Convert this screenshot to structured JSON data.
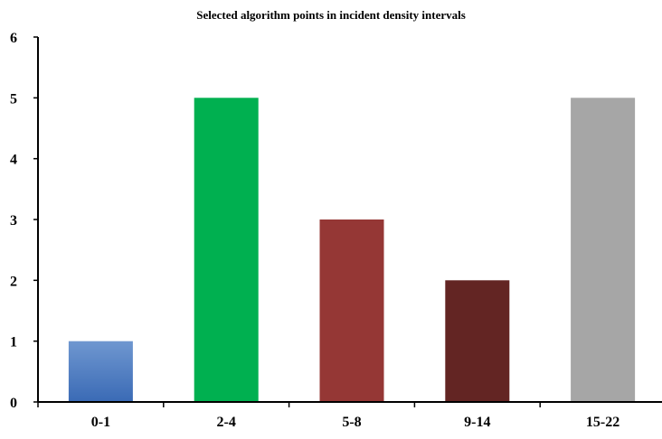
{
  "chart_data": {
    "type": "bar",
    "title": "Selected algorithm points in incident density intervals",
    "xlabel": "",
    "ylabel": "",
    "categories": [
      "0-1",
      "2-4",
      "5-8",
      "9-14",
      "15-22"
    ],
    "values": [
      1,
      5,
      3,
      2,
      5
    ],
    "colors": [
      "#4f7fc0",
      "#00b050",
      "#953735",
      "#632523",
      "#a6a6a6"
    ],
    "ylim": [
      0,
      6
    ],
    "yticks": [
      0,
      1,
      2,
      3,
      4,
      5,
      6
    ],
    "grid": false,
    "legend": "none"
  }
}
